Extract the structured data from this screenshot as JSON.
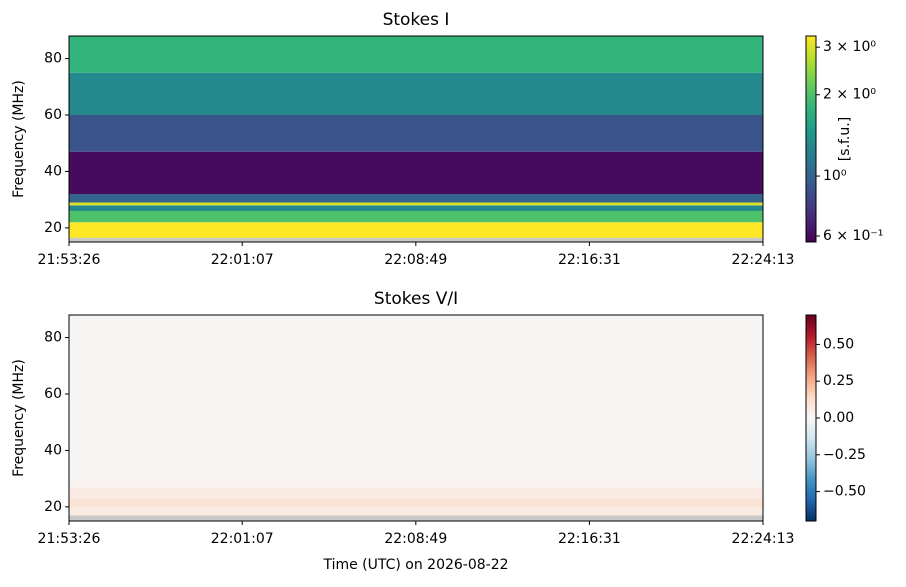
{
  "chart_data": [
    {
      "type": "heatmap",
      "title": "Stokes I",
      "ylabel": "Frequency (MHz)",
      "xlim": [
        "21:53:26",
        "22:24:13"
      ],
      "xticks": [
        "21:53:26",
        "22:01:07",
        "22:08:49",
        "22:16:31",
        "22:24:13"
      ],
      "ylim": [
        15,
        88
      ],
      "yticks": [
        20,
        40,
        60,
        80
      ],
      "ybins": [
        15,
        16.5,
        22,
        26,
        28,
        29,
        32,
        47,
        60,
        75,
        88
      ],
      "values": [
        null,
        3.3,
        2.0,
        1.3,
        3.0,
        1.0,
        0.6,
        0.9,
        1.3,
        1.8
      ],
      "colormap": "viridis",
      "color_scale": "log",
      "clim": [
        0.57,
        3.3
      ],
      "colorbar_label": "[s.f.u.]",
      "colorbar_ticks": [
        {
          "value": 0.6,
          "label": "6 × 10⁻¹"
        },
        {
          "value": 1,
          "label": "10⁰"
        },
        {
          "value": 2,
          "label": "2 × 10⁰"
        },
        {
          "value": 3,
          "label": "3 × 10⁰"
        }
      ]
    },
    {
      "type": "heatmap",
      "title": "Stokes V/I",
      "ylabel": "Frequency (MHz)",
      "xlabel": "Time (UTC) on 2026-08-22",
      "xlim": [
        "21:53:26",
        "22:24:13"
      ],
      "xticks": [
        "21:53:26",
        "22:01:07",
        "22:08:49",
        "22:16:31",
        "22:24:13"
      ],
      "ylim": [
        15,
        88
      ],
      "yticks": [
        20,
        40,
        60,
        80
      ],
      "ybins": [
        15,
        17,
        20,
        23,
        27,
        30,
        88
      ],
      "values": [
        null,
        0.06,
        0.1,
        0.06,
        0.02,
        0.01
      ],
      "colormap": "RdBu_r",
      "color_scale": "linear",
      "clim": [
        -0.7,
        0.7
      ],
      "colorbar_ticks": [
        {
          "value": -0.5,
          "label": "−0.50"
        },
        {
          "value": -0.25,
          "label": "−0.25"
        },
        {
          "value": 0,
          "label": "0.00"
        },
        {
          "value": 0.25,
          "label": "0.25"
        },
        {
          "value": 0.5,
          "label": "0.50"
        }
      ]
    }
  ]
}
